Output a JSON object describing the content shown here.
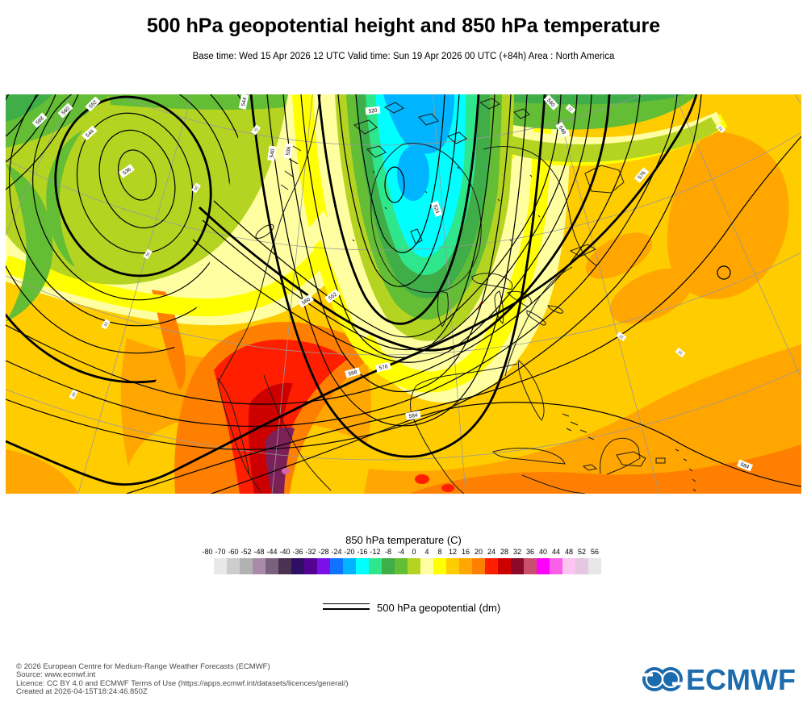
{
  "header": {
    "title": "500 hPa geopotential height and 850 hPa temperature",
    "subtitle": "Base time: Wed 15 Apr 2026 12 UTC Valid time: Sun 19 Apr 2026 00 UTC (+84h) Area : North America"
  },
  "legend": {
    "temp_title": "850 hPa temperature (C)",
    "ticks": [
      "-80",
      "-70",
      "-60",
      "-52",
      "-48",
      "-44",
      "-40",
      "-36",
      "-32",
      "-28",
      "-24",
      "-20",
      "-16",
      "-12",
      "-8",
      "-4",
      "0",
      "4",
      "8",
      "12",
      "16",
      "20",
      "24",
      "28",
      "32",
      "36",
      "40",
      "44",
      "48",
      "52",
      "56"
    ],
    "colors": [
      "#e8e8e8",
      "#cdcdcd",
      "#b2b2b2",
      "#a98ba9",
      "#7a627e",
      "#4a3252",
      "#2e0f63",
      "#530293",
      "#7d0fe8",
      "#0f73ff",
      "#00b4ff",
      "#00ffff",
      "#2ee68c",
      "#3fae49",
      "#63bd35",
      "#b5d422",
      "#ffffa2",
      "#ffff00",
      "#ffcc00",
      "#ffa600",
      "#ff8000",
      "#ff1e00",
      "#cd0000",
      "#8b0a28",
      "#c84f6e",
      "#ff00ff",
      "#fa5fe8",
      "#fcc4f0",
      "#e3c7e3",
      "#e7e7e7"
    ],
    "geo_label": "500 hPa geopotential (dm)"
  },
  "map": {
    "contour_labels": [
      "536",
      "544",
      "552",
      "560",
      "568",
      "520",
      "524",
      "536",
      "540",
      "544",
      "548",
      "560",
      "552",
      "560",
      "568",
      "576",
      "576",
      "584",
      "584"
    ],
    "graticule_labels": [
      "70",
      "60",
      "50",
      "40",
      "30",
      "52",
      "12",
      "20",
      "16"
    ],
    "hot_core": "#7c2158",
    "hot_spot": "#d565ae"
  },
  "footer": {
    "line1": "© 2026 European Centre for Medium-Range Weather Forecasts (ECMWF)",
    "line2": "Source: www.ecmwf.int",
    "line3": "Licence: CC BY 4.0 and ECMWF Terms of Use (https://apps.ecmwf.int/datasets/licences/general/)",
    "line4": "Created at 2026-04-15T18:24:46.850Z",
    "logo_text": "ECMWF"
  }
}
